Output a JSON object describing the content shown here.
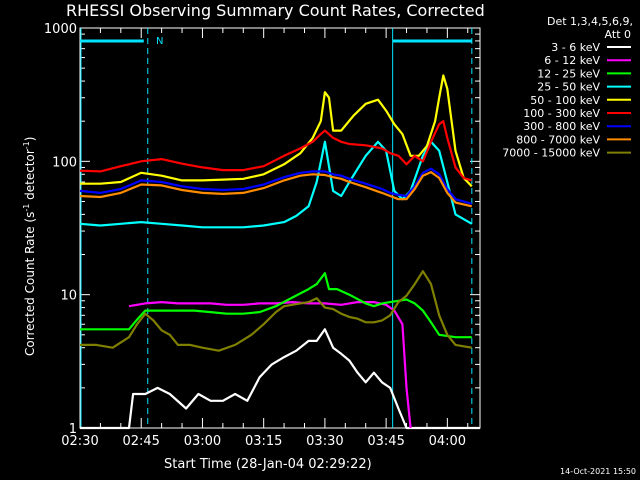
{
  "chart_data": {
    "type": "line",
    "title": "RHESSI Observing Summary Count Rates, Corrected",
    "xlabel": "Start Time (28-Jan-04 02:29:22)",
    "ylabel": "Corrected Count Rate (s-1 detector-1)",
    "ylabel_parts": {
      "pre": "Corrected Count Rate (s",
      "sup1": "-1",
      "mid": " detector",
      "sup2": "-1",
      "post": ")"
    },
    "y_scale": "log",
    "ylim": [
      1,
      1000
    ],
    "xlim_minutes": [
      0,
      98
    ],
    "x_ticks": [
      {
        "minute": 0,
        "label": "02:30"
      },
      {
        "minute": 15,
        "label": "02:45"
      },
      {
        "minute": 30,
        "label": "03:00"
      },
      {
        "minute": 45,
        "label": "03:15"
      },
      {
        "minute": 60,
        "label": "03:30"
      },
      {
        "minute": 75,
        "label": "03:45"
      },
      {
        "minute": 90,
        "label": "04:00"
      }
    ],
    "y_ticks": [
      {
        "value": 1,
        "label": "1"
      },
      {
        "value": 10,
        "label": "10"
      },
      {
        "value": 100,
        "label": "100"
      },
      {
        "value": 1000,
        "label": "1000"
      }
    ],
    "legend_header": [
      "Det 1,3,4,5,6,9,",
      "Att 0"
    ],
    "legend_position": "right",
    "timestamp": "14-Oct-2021 15:50",
    "night_marker": "N",
    "markers": {
      "solid_minutes": [
        0,
        16.6
      ],
      "solid2_minutes": [
        76.6,
        96
      ],
      "dashed_minutes": [
        16.6,
        76.6,
        96
      ],
      "color": "#00e5ff"
    },
    "series": [
      {
        "name": "3 - 6 keV",
        "color": "#ffffff",
        "points": [
          [
            0,
            1
          ],
          [
            3,
            1
          ],
          [
            6,
            1
          ],
          [
            9,
            1
          ],
          [
            12,
            1
          ],
          [
            13,
            1.8
          ],
          [
            16,
            1.8
          ],
          [
            19,
            2.0
          ],
          [
            22,
            1.8
          ],
          [
            26,
            1.4
          ],
          [
            29,
            1.8
          ],
          [
            32,
            1.6
          ],
          [
            35,
            1.6
          ],
          [
            38,
            1.8
          ],
          [
            41,
            1.6
          ],
          [
            44,
            2.4
          ],
          [
            47,
            3.0
          ],
          [
            50,
            3.4
          ],
          [
            53,
            3.8
          ],
          [
            56,
            4.5
          ],
          [
            58,
            4.5
          ],
          [
            60,
            5.5
          ],
          [
            62,
            4.0
          ],
          [
            64,
            3.6
          ],
          [
            66,
            3.2
          ],
          [
            68,
            2.6
          ],
          [
            70,
            2.2
          ],
          [
            72,
            2.6
          ],
          [
            74,
            2.2
          ],
          [
            76,
            2.0
          ],
          [
            78,
            1.4
          ],
          [
            80,
            1
          ],
          [
            84,
            1
          ],
          [
            98,
            1
          ]
        ]
      },
      {
        "name": "6 - 12 keV",
        "color": "#ff00ff",
        "points": [
          [
            12,
            8.2
          ],
          [
            16,
            8.6
          ],
          [
            20,
            8.8
          ],
          [
            24,
            8.6
          ],
          [
            28,
            8.6
          ],
          [
            32,
            8.6
          ],
          [
            36,
            8.4
          ],
          [
            40,
            8.4
          ],
          [
            44,
            8.6
          ],
          [
            48,
            8.6
          ],
          [
            52,
            8.8
          ],
          [
            56,
            8.6
          ],
          [
            60,
            8.6
          ],
          [
            64,
            8.4
          ],
          [
            68,
            8.8
          ],
          [
            72,
            8.8
          ],
          [
            75,
            8.4
          ],
          [
            77,
            7.6
          ],
          [
            79,
            6.0
          ],
          [
            80,
            2
          ],
          [
            81,
            1
          ]
        ]
      },
      {
        "name": "12 - 25 keV",
        "color": "#00ff00",
        "points": [
          [
            0,
            5.5
          ],
          [
            4,
            5.5
          ],
          [
            8,
            5.5
          ],
          [
            12,
            5.5
          ],
          [
            14,
            6.5
          ],
          [
            16,
            7.6
          ],
          [
            20,
            7.6
          ],
          [
            24,
            7.6
          ],
          [
            28,
            7.6
          ],
          [
            32,
            7.4
          ],
          [
            36,
            7.2
          ],
          [
            40,
            7.2
          ],
          [
            44,
            7.4
          ],
          [
            48,
            8.2
          ],
          [
            52,
            9.5
          ],
          [
            56,
            11
          ],
          [
            58,
            12
          ],
          [
            60,
            14.5
          ],
          [
            61,
            11
          ],
          [
            63,
            11
          ],
          [
            66,
            10
          ],
          [
            70,
            8.6
          ],
          [
            72,
            8.2
          ],
          [
            74,
            8.6
          ],
          [
            76,
            8.8
          ],
          [
            78,
            9.0
          ],
          [
            80,
            9.2
          ],
          [
            82,
            8.6
          ],
          [
            84,
            7.6
          ],
          [
            86,
            6.2
          ],
          [
            88,
            5.0
          ],
          [
            92,
            4.8
          ],
          [
            96,
            4.8
          ]
        ]
      },
      {
        "name": "25 - 50 keV",
        "color": "#00ffff",
        "points": [
          [
            0,
            34
          ],
          [
            5,
            33
          ],
          [
            10,
            34
          ],
          [
            15,
            35
          ],
          [
            20,
            34
          ],
          [
            25,
            33
          ],
          [
            30,
            32
          ],
          [
            35,
            32
          ],
          [
            40,
            32
          ],
          [
            45,
            33
          ],
          [
            50,
            35
          ],
          [
            53,
            39
          ],
          [
            56,
            46
          ],
          [
            58,
            70
          ],
          [
            60,
            140
          ],
          [
            62,
            60
          ],
          [
            64,
            55
          ],
          [
            66,
            70
          ],
          [
            70,
            110
          ],
          [
            73,
            140
          ],
          [
            75,
            120
          ],
          [
            77,
            60
          ],
          [
            79,
            52
          ],
          [
            81,
            60
          ],
          [
            84,
            110
          ],
          [
            86,
            140
          ],
          [
            88,
            120
          ],
          [
            90,
            70
          ],
          [
            92,
            40
          ],
          [
            96,
            34
          ]
        ]
      },
      {
        "name": "50 - 100 keV",
        "color": "#ffff00",
        "points": [
          [
            0,
            68
          ],
          [
            5,
            68
          ],
          [
            10,
            70
          ],
          [
            15,
            82
          ],
          [
            20,
            78
          ],
          [
            25,
            72
          ],
          [
            30,
            72
          ],
          [
            35,
            73
          ],
          [
            40,
            74
          ],
          [
            45,
            80
          ],
          [
            50,
            95
          ],
          [
            54,
            115
          ],
          [
            57,
            150
          ],
          [
            59,
            200
          ],
          [
            60,
            330
          ],
          [
            61,
            300
          ],
          [
            62,
            170
          ],
          [
            64,
            170
          ],
          [
            67,
            220
          ],
          [
            70,
            270
          ],
          [
            73,
            290
          ],
          [
            75,
            240
          ],
          [
            77,
            190
          ],
          [
            79,
            160
          ],
          [
            81,
            110
          ],
          [
            83,
            110
          ],
          [
            85,
            130
          ],
          [
            87,
            200
          ],
          [
            88,
            300
          ],
          [
            89,
            440
          ],
          [
            90,
            350
          ],
          [
            92,
            120
          ],
          [
            94,
            75
          ],
          [
            96,
            65
          ]
        ]
      },
      {
        "name": "100 - 300 keV",
        "color": "#ff0000",
        "points": [
          [
            0,
            85
          ],
          [
            5,
            84
          ],
          [
            10,
            92
          ],
          [
            15,
            100
          ],
          [
            20,
            104
          ],
          [
            25,
            96
          ],
          [
            30,
            90
          ],
          [
            35,
            86
          ],
          [
            40,
            86
          ],
          [
            45,
            92
          ],
          [
            50,
            110
          ],
          [
            54,
            125
          ],
          [
            57,
            140
          ],
          [
            59,
            160
          ],
          [
            60,
            170
          ],
          [
            62,
            150
          ],
          [
            64,
            140
          ],
          [
            66,
            135
          ],
          [
            70,
            132
          ],
          [
            74,
            125
          ],
          [
            76,
            115
          ],
          [
            78,
            110
          ],
          [
            80,
            95
          ],
          [
            82,
            110
          ],
          [
            84,
            100
          ],
          [
            86,
            140
          ],
          [
            88,
            190
          ],
          [
            89,
            200
          ],
          [
            90,
            150
          ],
          [
            92,
            90
          ],
          [
            94,
            75
          ],
          [
            96,
            72
          ]
        ]
      },
      {
        "name": "300 - 800 keV",
        "color": "#0000ff",
        "points": [
          [
            0,
            60
          ],
          [
            5,
            58
          ],
          [
            10,
            62
          ],
          [
            15,
            72
          ],
          [
            20,
            70
          ],
          [
            25,
            65
          ],
          [
            30,
            62
          ],
          [
            35,
            61
          ],
          [
            40,
            62
          ],
          [
            45,
            67
          ],
          [
            50,
            76
          ],
          [
            54,
            82
          ],
          [
            57,
            84
          ],
          [
            60,
            84
          ],
          [
            62,
            80
          ],
          [
            64,
            78
          ],
          [
            66,
            74
          ],
          [
            70,
            68
          ],
          [
            74,
            62
          ],
          [
            76,
            58
          ],
          [
            78,
            56
          ],
          [
            80,
            55
          ],
          [
            82,
            65
          ],
          [
            84,
            82
          ],
          [
            86,
            88
          ],
          [
            88,
            80
          ],
          [
            90,
            62
          ],
          [
            92,
            52
          ],
          [
            96,
            48
          ]
        ]
      },
      {
        "name": "800 - 7000 keV",
        "color": "#ff8c00",
        "points": [
          [
            0,
            55
          ],
          [
            5,
            54
          ],
          [
            10,
            58
          ],
          [
            15,
            67
          ],
          [
            20,
            66
          ],
          [
            25,
            61
          ],
          [
            30,
            58
          ],
          [
            35,
            57
          ],
          [
            40,
            58
          ],
          [
            45,
            63
          ],
          [
            50,
            72
          ],
          [
            54,
            78
          ],
          [
            57,
            80
          ],
          [
            60,
            79
          ],
          [
            62,
            76
          ],
          [
            64,
            74
          ],
          [
            66,
            70
          ],
          [
            70,
            64
          ],
          [
            74,
            58
          ],
          [
            76,
            55
          ],
          [
            78,
            52
          ],
          [
            80,
            52
          ],
          [
            82,
            62
          ],
          [
            84,
            78
          ],
          [
            86,
            83
          ],
          [
            88,
            75
          ],
          [
            90,
            58
          ],
          [
            92,
            49
          ],
          [
            96,
            46
          ]
        ]
      },
      {
        "name": "7000 - 15000 keV",
        "color": "#808000",
        "points": [
          [
            0,
            4.2
          ],
          [
            4,
            4.2
          ],
          [
            8,
            4.0
          ],
          [
            12,
            4.8
          ],
          [
            14,
            6.0
          ],
          [
            16,
            7.2
          ],
          [
            18,
            6.4
          ],
          [
            20,
            5.4
          ],
          [
            22,
            5.0
          ],
          [
            24,
            4.2
          ],
          [
            27,
            4.2
          ],
          [
            30,
            4.0
          ],
          [
            34,
            3.8
          ],
          [
            38,
            4.2
          ],
          [
            42,
            5.0
          ],
          [
            45,
            6.0
          ],
          [
            48,
            7.4
          ],
          [
            50,
            8.2
          ],
          [
            52,
            8.4
          ],
          [
            54,
            8.6
          ],
          [
            56,
            8.8
          ],
          [
            58,
            9.4
          ],
          [
            60,
            8.0
          ],
          [
            62,
            7.8
          ],
          [
            64,
            7.2
          ],
          [
            66,
            6.8
          ],
          [
            68,
            6.6
          ],
          [
            70,
            6.2
          ],
          [
            72,
            6.2
          ],
          [
            74,
            6.4
          ],
          [
            76,
            7.0
          ],
          [
            78,
            8.8
          ],
          [
            80,
            9.8
          ],
          [
            82,
            12
          ],
          [
            84,
            15
          ],
          [
            86,
            12
          ],
          [
            88,
            7.0
          ],
          [
            90,
            5.0
          ],
          [
            92,
            4.2
          ],
          [
            96,
            4.0
          ]
        ]
      }
    ]
  }
}
